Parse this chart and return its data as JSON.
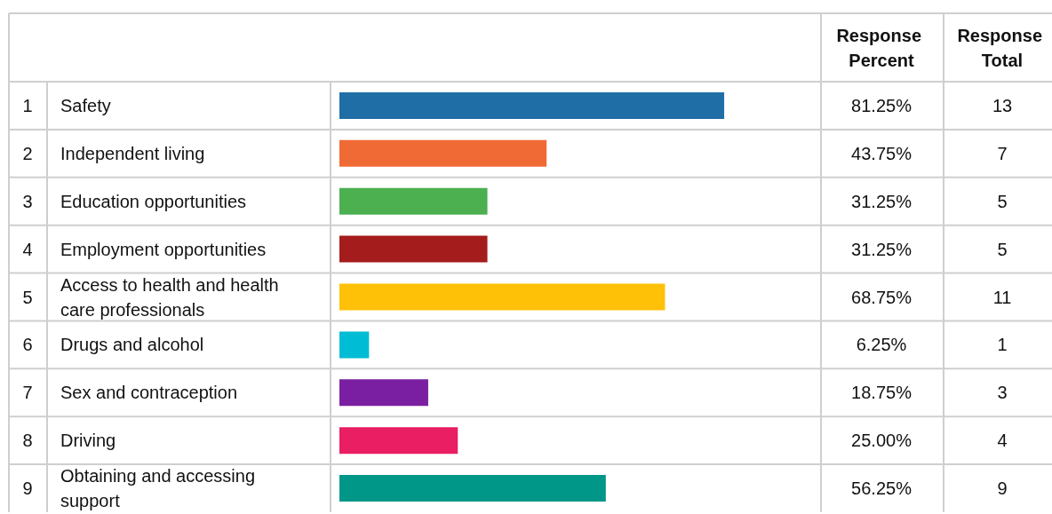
{
  "chart_data": {
    "type": "bar",
    "orientation": "horizontal",
    "categories": [
      "Safety",
      "Independent living",
      "Education opportunities",
      "Employment opportunities",
      "Access to health and health care professionals",
      "Drugs and alcohol",
      "Sex and contraception",
      "Driving",
      "Obtaining and accessing support"
    ],
    "values": [
      81.25,
      43.75,
      31.25,
      31.25,
      68.75,
      6.25,
      18.75,
      25.0,
      56.25
    ],
    "colors": [
      "#1f6fa6",
      "#f06a35",
      "#4caf50",
      "#a51c1c",
      "#ffc107",
      "#00bcd4",
      "#7b1fa2",
      "#e91e63",
      "#009688"
    ],
    "value_labels": [
      "81.25%",
      "43.75%",
      "31.25%",
      "31.25%",
      "68.75%",
      "6.25%",
      "18.75%",
      "25.00%",
      "56.25%"
    ],
    "tick_labels": "y",
    "grid": "y",
    "annotations": [
      "Response Percent",
      "Response Total",
      "1",
      "2",
      "3",
      "4",
      "5",
      "6",
      "7",
      "8",
      "9",
      "13",
      "7",
      "5",
      "5",
      "11",
      "1",
      "3",
      "4",
      "9"
    ]
  }
}
